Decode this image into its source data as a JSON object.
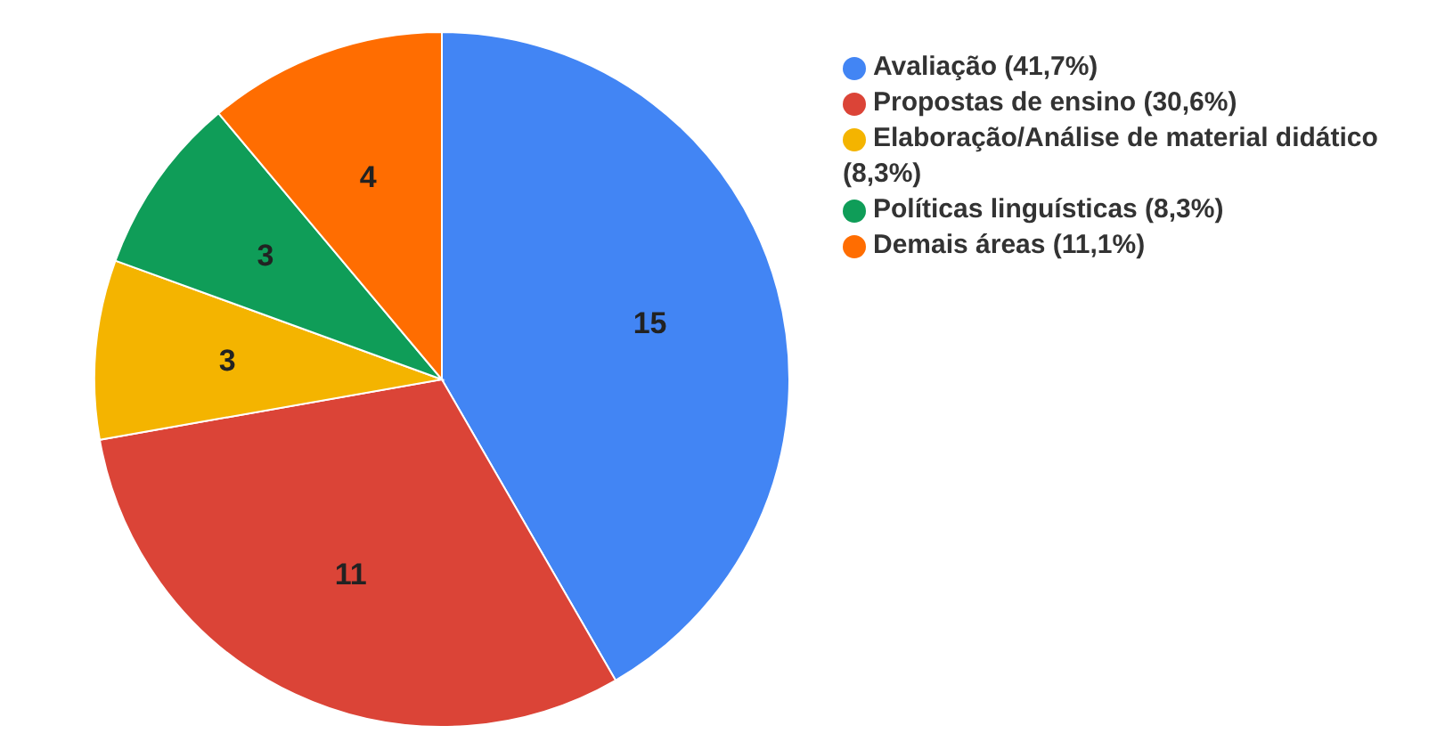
{
  "chart_data": {
    "type": "pie",
    "categories": [
      "Avaliação (41,7%)",
      "Propostas de ensino (30,6%)",
      "Elaboração/Análise de material didático (8,3%)",
      "Políticas linguísticas (8,3%)",
      "Demais áreas (11,1%)"
    ],
    "values": [
      15,
      11,
      3,
      3,
      4
    ],
    "colors": [
      "#4285f4",
      "#db4437",
      "#f4b400",
      "#0f9d58",
      "#ff6d01"
    ],
    "data_labels": true,
    "legend": "top right"
  }
}
